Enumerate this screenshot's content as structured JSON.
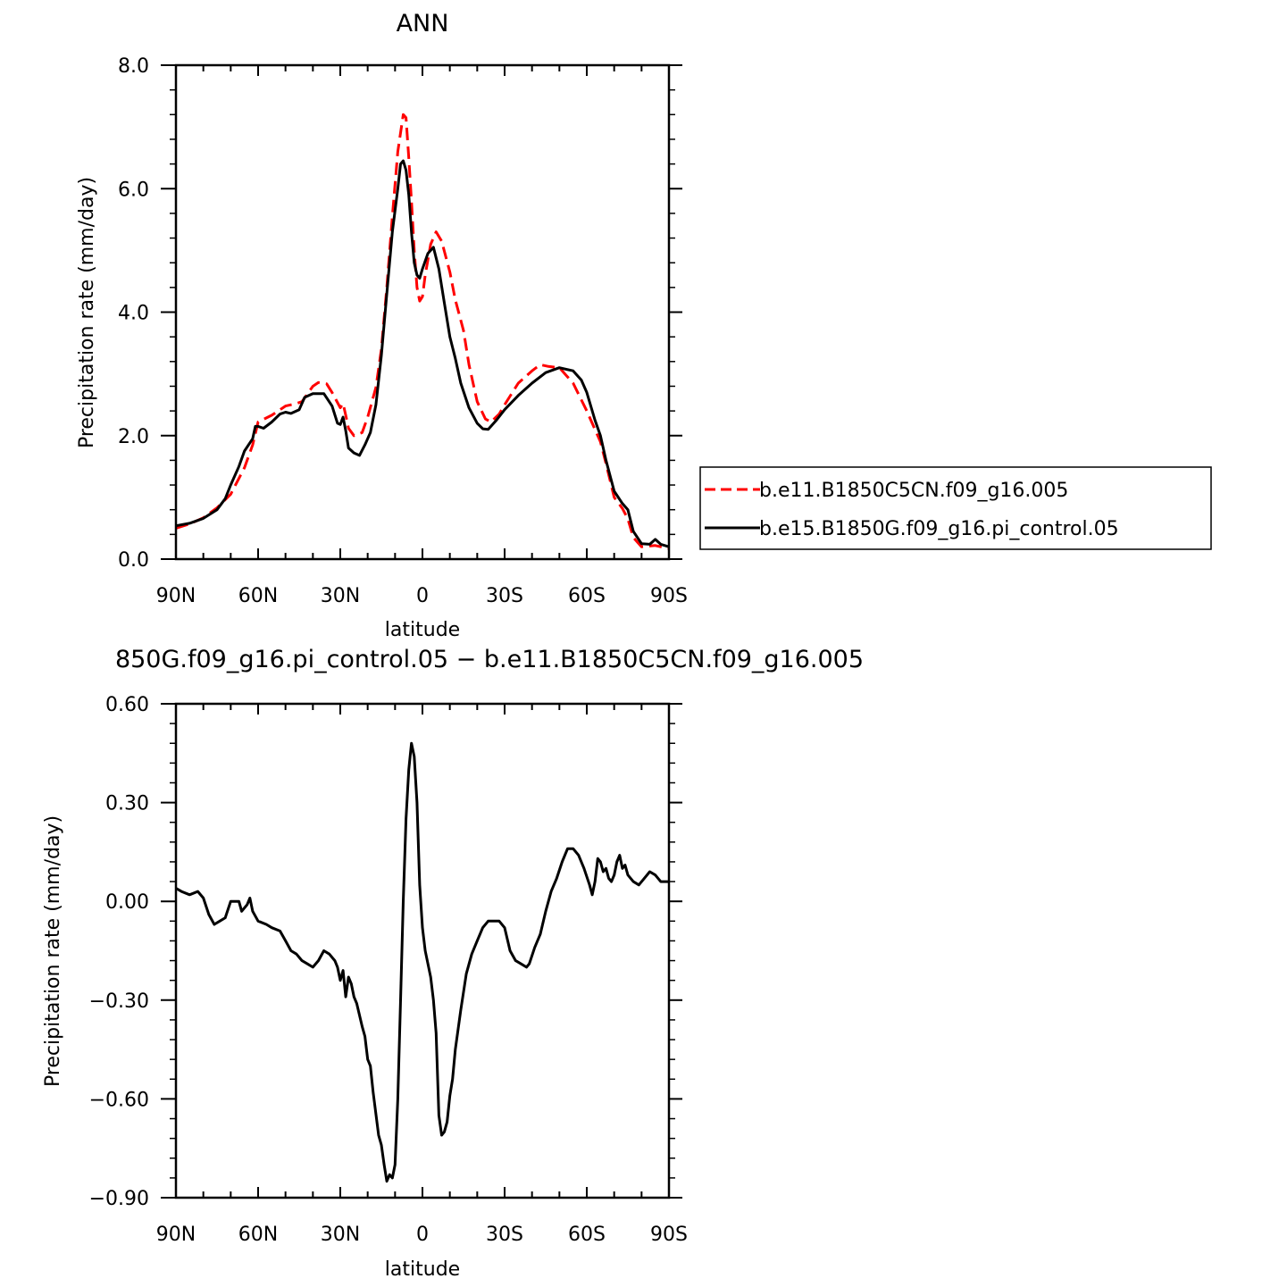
{
  "chart_data": [
    {
      "type": "line",
      "title": "ANN",
      "xlabel": "latitude",
      "ylabel": "Precipitation rate (mm/day)",
      "xlim": [
        90,
        -90
      ],
      "ylim": [
        0,
        8
      ],
      "x_tick_labels": [
        "90N",
        "60N",
        "30N",
        "0",
        "30S",
        "60S",
        "90S"
      ],
      "y_tick_labels": [
        "0.0",
        "2.0",
        "4.0",
        "6.0",
        "8.0"
      ],
      "legend_position": "right",
      "series": [
        {
          "name": "b.e11.B1850C5CN.f09_g16.005",
          "color": "#ff0000",
          "dash": "dashed",
          "points": [
            [
              90,
              0.5
            ],
            [
              85,
              0.57
            ],
            [
              80,
              0.67
            ],
            [
              75,
              0.83
            ],
            [
              70,
              1.05
            ],
            [
              65,
              1.48
            ],
            [
              62,
              1.85
            ],
            [
              60,
              2.22
            ],
            [
              55,
              2.33
            ],
            [
              50,
              2.48
            ],
            [
              46,
              2.52
            ],
            [
              44,
              2.55
            ],
            [
              40,
              2.8
            ],
            [
              38,
              2.86
            ],
            [
              35,
              2.84
            ],
            [
              33,
              2.7
            ],
            [
              30,
              2.45
            ],
            [
              29,
              2.52
            ],
            [
              28,
              2.33
            ],
            [
              27,
              2.12
            ],
            [
              25,
              2.0
            ],
            [
              22,
              2.05
            ],
            [
              20,
              2.3
            ],
            [
              17,
              2.78
            ],
            [
              15,
              3.4
            ],
            [
              13,
              4.4
            ],
            [
              11,
              5.55
            ],
            [
              9,
              6.6
            ],
            [
              7,
              7.2
            ],
            [
              6,
              7.15
            ],
            [
              5,
              6.5
            ],
            [
              4,
              5.8
            ],
            [
              3,
              5.0
            ],
            [
              2,
              4.4
            ],
            [
              1,
              4.18
            ],
            [
              0,
              4.25
            ],
            [
              -1,
              4.6
            ],
            [
              -3,
              5.1
            ],
            [
              -5,
              5.3
            ],
            [
              -7,
              5.15
            ],
            [
              -10,
              4.65
            ],
            [
              -12,
              4.2
            ],
            [
              -15,
              3.7
            ],
            [
              -17,
              3.15
            ],
            [
              -20,
              2.55
            ],
            [
              -23,
              2.27
            ],
            [
              -25,
              2.22
            ],
            [
              -28,
              2.35
            ],
            [
              -30,
              2.5
            ],
            [
              -35,
              2.85
            ],
            [
              -40,
              3.05
            ],
            [
              -43,
              3.15
            ],
            [
              -46,
              3.12
            ],
            [
              -50,
              3.1
            ],
            [
              -55,
              2.85
            ],
            [
              -60,
              2.4
            ],
            [
              -65,
              1.9
            ],
            [
              -67,
              1.55
            ],
            [
              -70,
              1.0
            ],
            [
              -73,
              0.82
            ],
            [
              -75,
              0.65
            ],
            [
              -77,
              0.35
            ],
            [
              -80,
              0.2
            ],
            [
              -85,
              0.22
            ],
            [
              -90,
              0.17
            ]
          ]
        },
        {
          "name": "b.e15.B1850G.f09_g16.pi_control.05",
          "color": "#000000",
          "dash": "solid",
          "points": [
            [
              90,
              0.54
            ],
            [
              85,
              0.58
            ],
            [
              80,
              0.66
            ],
            [
              75,
              0.8
            ],
            [
              72,
              0.98
            ],
            [
              70,
              1.2
            ],
            [
              67,
              1.5
            ],
            [
              65,
              1.75
            ],
            [
              62,
              1.95
            ],
            [
              61,
              2.15
            ],
            [
              60,
              2.15
            ],
            [
              58,
              2.12
            ],
            [
              55,
              2.22
            ],
            [
              52,
              2.35
            ],
            [
              50,
              2.38
            ],
            [
              48,
              2.36
            ],
            [
              45,
              2.42
            ],
            [
              43,
              2.62
            ],
            [
              40,
              2.68
            ],
            [
              36,
              2.68
            ],
            [
              33,
              2.48
            ],
            [
              31,
              2.2
            ],
            [
              30,
              2.18
            ],
            [
              29,
              2.3
            ],
            [
              28,
              2.08
            ],
            [
              27,
              1.8
            ],
            [
              25,
              1.72
            ],
            [
              23,
              1.68
            ],
            [
              21,
              1.85
            ],
            [
              19,
              2.05
            ],
            [
              17,
              2.5
            ],
            [
              15,
              3.3
            ],
            [
              13,
              4.3
            ],
            [
              11,
              5.3
            ],
            [
              9,
              6.0
            ],
            [
              8,
              6.4
            ],
            [
              7,
              6.45
            ],
            [
              6,
              6.3
            ],
            [
              5,
              5.9
            ],
            [
              4,
              5.3
            ],
            [
              3,
              4.8
            ],
            [
              2,
              4.6
            ],
            [
              1,
              4.55
            ],
            [
              0,
              4.7
            ],
            [
              -2,
              4.95
            ],
            [
              -4,
              5.05
            ],
            [
              -6,
              4.7
            ],
            [
              -8,
              4.15
            ],
            [
              -10,
              3.6
            ],
            [
              -12,
              3.25
            ],
            [
              -14,
              2.85
            ],
            [
              -17,
              2.45
            ],
            [
              -20,
              2.2
            ],
            [
              -22,
              2.11
            ],
            [
              -24,
              2.1
            ],
            [
              -27,
              2.25
            ],
            [
              -30,
              2.42
            ],
            [
              -35,
              2.65
            ],
            [
              -40,
              2.85
            ],
            [
              -45,
              3.02
            ],
            [
              -50,
              3.1
            ],
            [
              -55,
              3.05
            ],
            [
              -58,
              2.9
            ],
            [
              -60,
              2.7
            ],
            [
              -63,
              2.25
            ],
            [
              -65,
              2.0
            ],
            [
              -67,
              1.6
            ],
            [
              -70,
              1.1
            ],
            [
              -73,
              0.9
            ],
            [
              -75,
              0.8
            ],
            [
              -77,
              0.45
            ],
            [
              -80,
              0.25
            ],
            [
              -83,
              0.24
            ],
            [
              -85,
              0.32
            ],
            [
              -87,
              0.24
            ],
            [
              -90,
              0.2
            ]
          ]
        }
      ]
    },
    {
      "type": "line",
      "title": "850G.f09_g16.pi_control.05 − b.e11.B1850C5CN.f09_g16.005",
      "xlabel": "latitude",
      "ylabel": "Precipitation rate (mm/day)",
      "xlim": [
        90,
        -90
      ],
      "ylim": [
        -0.9,
        0.6
      ],
      "x_tick_labels": [
        "90N",
        "60N",
        "30N",
        "0",
        "30S",
        "60S",
        "90S"
      ],
      "y_tick_labels": [
        "−0.90",
        "−0.60",
        "−0.30",
        "0.00",
        "0.30",
        "0.60"
      ],
      "series": [
        {
          "name": "",
          "color": "#000000",
          "dash": "solid",
          "points": [
            [
              90,
              0.04
            ],
            [
              88,
              0.03
            ],
            [
              85,
              0.02
            ],
            [
              82,
              0.03
            ],
            [
              80,
              0.01
            ],
            [
              78,
              -0.04
            ],
            [
              76,
              -0.07
            ],
            [
              74,
              -0.06
            ],
            [
              72,
              -0.05
            ],
            [
              70,
              0.0
            ],
            [
              68,
              0.0
            ],
            [
              67,
              0.0
            ],
            [
              66,
              -0.03
            ],
            [
              64,
              -0.01
            ],
            [
              63,
              0.01
            ],
            [
              62,
              -0.03
            ],
            [
              60,
              -0.06
            ],
            [
              57,
              -0.07
            ],
            [
              55,
              -0.08
            ],
            [
              52,
              -0.09
            ],
            [
              50,
              -0.12
            ],
            [
              48,
              -0.15
            ],
            [
              46,
              -0.16
            ],
            [
              44,
              -0.18
            ],
            [
              42,
              -0.19
            ],
            [
              40,
              -0.2
            ],
            [
              38,
              -0.18
            ],
            [
              36,
              -0.15
            ],
            [
              34,
              -0.16
            ],
            [
              32,
              -0.18
            ],
            [
              31,
              -0.2
            ],
            [
              30,
              -0.24
            ],
            [
              29,
              -0.21
            ],
            [
              28,
              -0.29
            ],
            [
              27,
              -0.23
            ],
            [
              26,
              -0.25
            ],
            [
              25,
              -0.29
            ],
            [
              24,
              -0.31
            ],
            [
              22,
              -0.38
            ],
            [
              21,
              -0.41
            ],
            [
              20,
              -0.48
            ],
            [
              19,
              -0.5
            ],
            [
              18,
              -0.58
            ],
            [
              16,
              -0.71
            ],
            [
              15,
              -0.74
            ],
            [
              14,
              -0.8
            ],
            [
              13,
              -0.85
            ],
            [
              12,
              -0.83
            ],
            [
              11,
              -0.84
            ],
            [
              10,
              -0.8
            ],
            [
              9,
              -0.6
            ],
            [
              8,
              -0.3
            ],
            [
              7,
              0.0
            ],
            [
              6,
              0.25
            ],
            [
              5,
              0.4
            ],
            [
              4,
              0.48
            ],
            [
              3,
              0.44
            ],
            [
              2,
              0.3
            ],
            [
              1,
              0.05
            ],
            [
              0,
              -0.08
            ],
            [
              -1,
              -0.15
            ],
            [
              -3,
              -0.23
            ],
            [
              -4,
              -0.3
            ],
            [
              -5,
              -0.4
            ],
            [
              -6,
              -0.65
            ],
            [
              -7,
              -0.71
            ],
            [
              -8,
              -0.7
            ],
            [
              -9,
              -0.67
            ],
            [
              -10,
              -0.59
            ],
            [
              -11,
              -0.54
            ],
            [
              -12,
              -0.45
            ],
            [
              -14,
              -0.33
            ],
            [
              -16,
              -0.22
            ],
            [
              -18,
              -0.16
            ],
            [
              -20,
              -0.12
            ],
            [
              -22,
              -0.08
            ],
            [
              -24,
              -0.06
            ],
            [
              -26,
              -0.06
            ],
            [
              -28,
              -0.06
            ],
            [
              -30,
              -0.08
            ],
            [
              -32,
              -0.15
            ],
            [
              -34,
              -0.18
            ],
            [
              -36,
              -0.19
            ],
            [
              -38,
              -0.2
            ],
            [
              -39,
              -0.19
            ],
            [
              -41,
              -0.14
            ],
            [
              -43,
              -0.1
            ],
            [
              -45,
              -0.03
            ],
            [
              -47,
              0.03
            ],
            [
              -49,
              0.07
            ],
            [
              -51,
              0.12
            ],
            [
              -53,
              0.16
            ],
            [
              -55,
              0.16
            ],
            [
              -57,
              0.14
            ],
            [
              -59,
              0.1
            ],
            [
              -61,
              0.05
            ],
            [
              -62,
              0.02
            ],
            [
              -63,
              0.06
            ],
            [
              -64,
              0.13
            ],
            [
              -65,
              0.12
            ],
            [
              -66,
              0.09
            ],
            [
              -67,
              0.1
            ],
            [
              -68,
              0.07
            ],
            [
              -69,
              0.06
            ],
            [
              -70,
              0.08
            ],
            [
              -71,
              0.12
            ],
            [
              -72,
              0.14
            ],
            [
              -73,
              0.1
            ],
            [
              -74,
              0.11
            ],
            [
              -75,
              0.08
            ],
            [
              -77,
              0.06
            ],
            [
              -79,
              0.05
            ],
            [
              -81,
              0.07
            ],
            [
              -83,
              0.09
            ],
            [
              -85,
              0.08
            ],
            [
              -87,
              0.06
            ],
            [
              -90,
              0.06
            ]
          ]
        }
      ]
    }
  ]
}
